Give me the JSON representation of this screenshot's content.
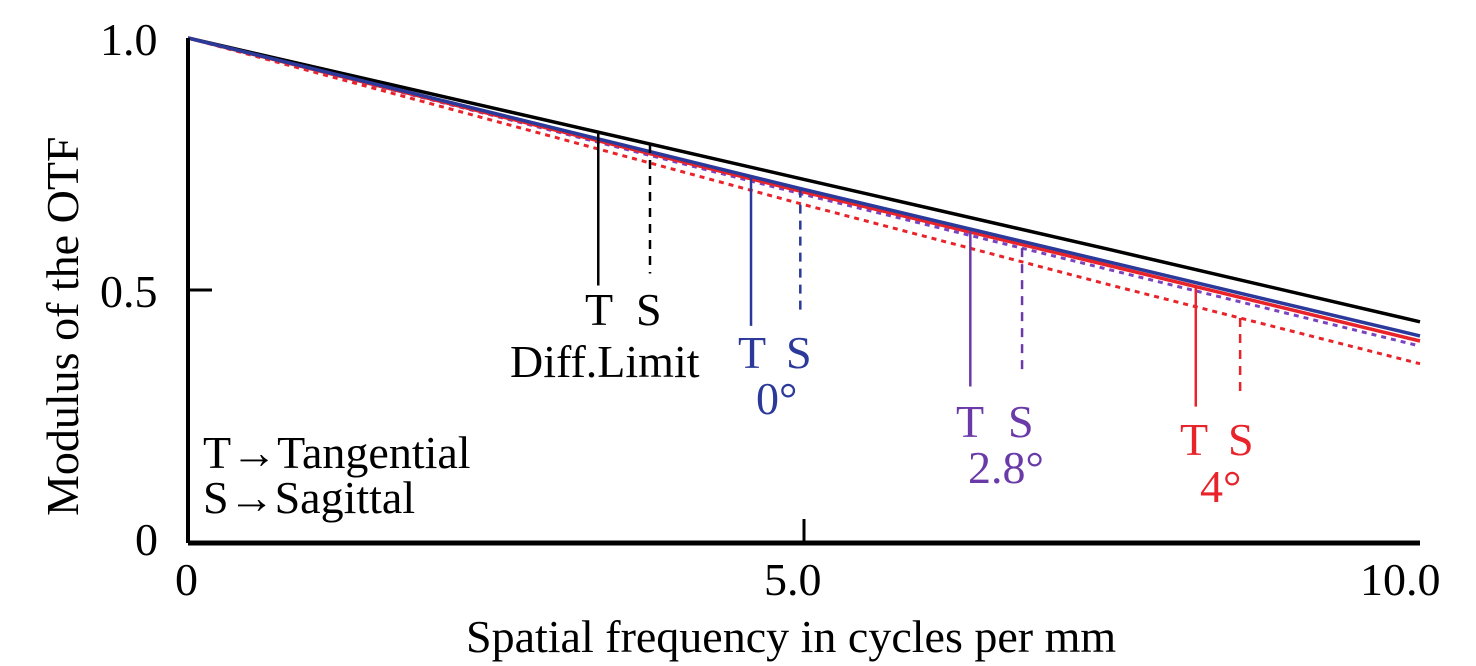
{
  "chart_data": {
    "type": "line",
    "xlabel": "Spatial frequency in cycles per mm",
    "ylabel": "Modulus of the OTF",
    "xlim": [
      0,
      10
    ],
    "ylim": [
      0,
      1
    ],
    "x_ticks": [
      "0",
      "5.0",
      "10.0"
    ],
    "y_ticks": [
      "0",
      "0.5",
      "1.0"
    ],
    "x": [
      0,
      2.5,
      5,
      7.5,
      10
    ],
    "series": [
      {
        "name": "Diff.Limit T",
        "color": "#000000",
        "style": "solid",
        "values": [
          1.0,
          0.86,
          0.72,
          0.58,
          0.438
        ]
      },
      {
        "name": "Diff.Limit S",
        "color": "#000000",
        "style": "solid",
        "values": [
          1.0,
          0.86,
          0.72,
          0.58,
          0.438
        ]
      },
      {
        "name": "0° T",
        "color": "#2b3a9a",
        "style": "solid",
        "values": [
          1.0,
          0.85,
          0.7,
          0.555,
          0.41
        ]
      },
      {
        "name": "0° S",
        "color": "#2b3a9a",
        "style": "dashed",
        "values": [
          1.0,
          0.85,
          0.7,
          0.555,
          0.41
        ]
      },
      {
        "name": "2.8° T",
        "color": "#6a3aa8",
        "style": "solid",
        "values": [
          1.0,
          0.848,
          0.697,
          0.55,
          0.4
        ]
      },
      {
        "name": "2.8° S",
        "color": "#7a44c0",
        "style": "dotted",
        "values": [
          1.0,
          0.845,
          0.69,
          0.54,
          0.39
        ]
      },
      {
        "name": "4° T",
        "color": "#e8232a",
        "style": "solid",
        "values": [
          1.0,
          0.847,
          0.695,
          0.548,
          0.4
        ]
      },
      {
        "name": "4° S",
        "color": "#e8232a",
        "style": "dotted",
        "values": [
          1.0,
          0.835,
          0.67,
          0.51,
          0.355
        ]
      }
    ],
    "annotations": [
      {
        "group": "diff",
        "t_label": "T",
        "s_label": "S",
        "name": "Diff.Limit",
        "color": "#000000",
        "t_x": 3.33,
        "s_x": 3.75,
        "bottom_y": 0.51
      },
      {
        "group": "deg0",
        "t_label": "T",
        "s_label": "S",
        "name": "0°",
        "color": "#2b3a9a",
        "t_x": 4.57,
        "s_x": 4.97,
        "bottom_y": 0.43
      },
      {
        "group": "deg28",
        "t_label": "T",
        "s_label": "S",
        "name": "2.8°",
        "color": "#6a3aa8",
        "t_x": 6.35,
        "s_x": 6.77,
        "bottom_y": 0.31
      },
      {
        "group": "deg4",
        "t_label": "T",
        "s_label": "S",
        "name": "4°",
        "color": "#e8232a",
        "t_x": 8.18,
        "s_x": 8.54,
        "bottom_y": 0.27
      }
    ],
    "legend": {
      "tangential": "T→Tangential",
      "sagittal": "S→Sagittal",
      "placement": "bottom-left"
    },
    "grid": false
  }
}
